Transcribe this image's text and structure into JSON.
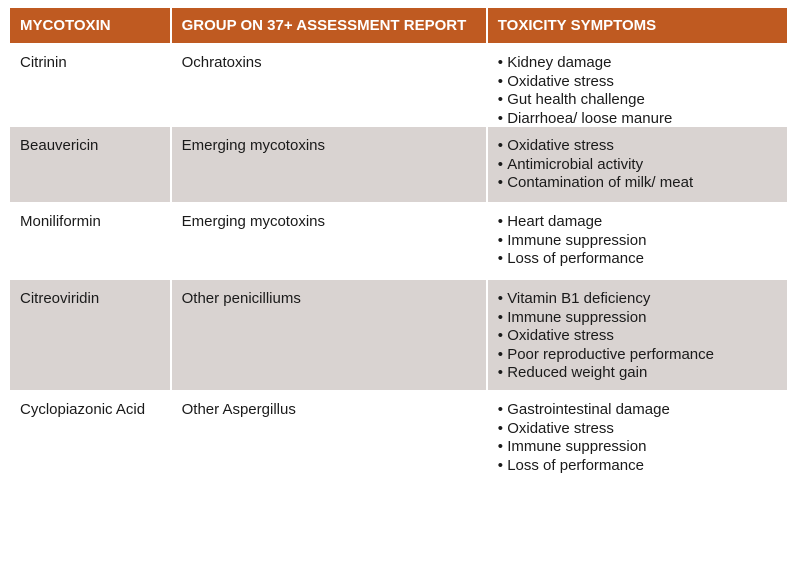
{
  "headers": {
    "mycotoxin": "MYCOTOXIN",
    "group": "GROUP ON 37+ ASSESSMENT REPORT",
    "symptoms": "TOXICITY SYMPTOMS"
  },
  "rows": [
    {
      "mycotoxin": "Citrinin",
      "group": "Ochratoxins",
      "symptoms": [
        "Kidney damage",
        "Oxidative stress",
        "Gut health challenge",
        "Diarrhoea/ loose manure"
      ]
    },
    {
      "mycotoxin": "Beauvericin",
      "group": "Emerging mycotoxins",
      "symptoms": [
        "Oxidative stress",
        "Antimicrobial activity",
        "Contamination of milk/ meat"
      ]
    },
    {
      "mycotoxin": "Moniliformin",
      "group": "Emerging mycotoxins",
      "symptoms": [
        "Heart damage",
        "Immune suppression",
        "Loss of performance"
      ]
    },
    {
      "mycotoxin": "Citreoviridin",
      "group": "Other penicilliums",
      "symptoms": [
        "Vitamin B1 deficiency",
        "Immune suppression",
        "Oxidative stress",
        "Poor reproductive performance",
        "Reduced weight gain"
      ]
    },
    {
      "mycotoxin": "Cyclopiazonic Acid",
      "group": "Other Aspergillus",
      "symptoms": [
        "Gastrointestinal damage",
        "Oxidative stress",
        "Immune suppression",
        "Loss of performance"
      ]
    }
  ],
  "colors": {
    "header_bg": "#bf5a21",
    "shaded_row_bg": "#d9d3d1"
  }
}
